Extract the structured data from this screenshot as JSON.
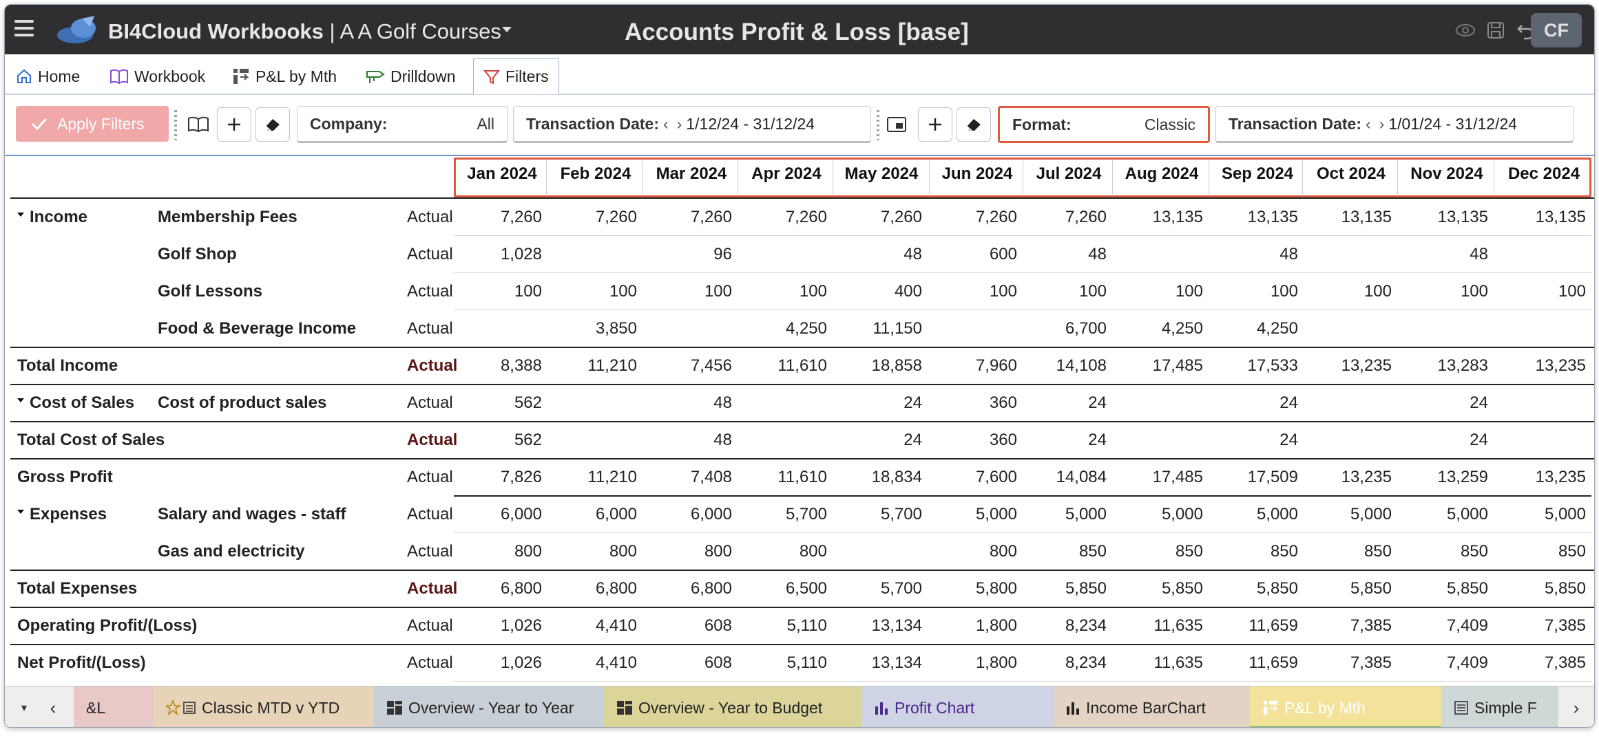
{
  "topbar": {
    "app_name": "BI4Cloud Workbooks",
    "separator": " | ",
    "company": "A A Golf Courses",
    "page_title": "Accounts Profit & Loss [base]",
    "avatar_initials": "CF"
  },
  "nav": {
    "tabs": [
      {
        "label": "Home",
        "icon": "home-icon"
      },
      {
        "label": "Workbook",
        "icon": "book-icon"
      },
      {
        "label": "P&L by Mth",
        "icon": "report-icon"
      },
      {
        "label": "Drilldown",
        "icon": "drill-icon"
      },
      {
        "label": "Filters",
        "icon": "filter-icon",
        "active": true
      }
    ]
  },
  "filters": {
    "apply_label": "Apply Filters",
    "company_label": "Company:",
    "company_value": "All",
    "txn_date_label": "Transaction Date:",
    "txn_date_value": "1/12/24 - 31/12/24",
    "format_label": "Format:",
    "format_value": "Classic",
    "txn_date2_label": "Transaction Date:",
    "txn_date2_value": "1/01/24 - 31/12/24"
  },
  "table": {
    "months": [
      "Jan 2024",
      "Feb 2024",
      "Mar 2024",
      "Apr 2024",
      "May 2024",
      "Jun 2024",
      "Jul 2024",
      "Aug 2024",
      "Sep 2024",
      "Oct 2024",
      "Nov 2024",
      "Dec 2024"
    ],
    "rows": [
      {
        "group": "Income",
        "collapsible": true,
        "account": "Membership Fees",
        "type": "Actual",
        "type_bold": false,
        "values": [
          "7,260",
          "7,260",
          "7,260",
          "7,260",
          "7,260",
          "7,260",
          "7,260",
          "13,135",
          "13,135",
          "13,135",
          "13,135",
          "13,135"
        ]
      },
      {
        "group": "",
        "account": "Golf Shop",
        "type": "Actual",
        "type_bold": false,
        "values": [
          "1,028",
          "",
          "96",
          "",
          "48",
          "600",
          "48",
          "",
          "48",
          "",
          "48",
          ""
        ]
      },
      {
        "group": "",
        "account": "Golf Lessons",
        "type": "Actual",
        "type_bold": false,
        "values": [
          "100",
          "100",
          "100",
          "100",
          "400",
          "100",
          "100",
          "100",
          "100",
          "100",
          "100",
          "100"
        ]
      },
      {
        "group": "",
        "account": "Food & Beverage Income",
        "type": "Actual",
        "type_bold": false,
        "values": [
          "",
          "3,850",
          "",
          "4,250",
          "11,150",
          "",
          "6,700",
          "4,250",
          "4,250",
          "",
          "",
          ""
        ]
      },
      {
        "group": "Total Income",
        "account": "",
        "type": "Actual",
        "type_bold": true,
        "values": [
          "8,388",
          "11,210",
          "7,456",
          "11,610",
          "18,858",
          "7,960",
          "14,108",
          "17,485",
          "17,533",
          "13,235",
          "13,283",
          "13,235"
        ]
      },
      {
        "group": "Cost of Sales",
        "collapsible": true,
        "account": "Cost of product sales",
        "type": "Actual",
        "type_bold": false,
        "values": [
          "562",
          "",
          "48",
          "",
          "24",
          "360",
          "24",
          "",
          "24",
          "",
          "24",
          ""
        ]
      },
      {
        "group": "Total Cost of Sales",
        "account": "",
        "type": "Actual",
        "type_bold": true,
        "values": [
          "562",
          "",
          "48",
          "",
          "24",
          "360",
          "24",
          "",
          "24",
          "",
          "24",
          ""
        ]
      },
      {
        "group": "Gross Profit",
        "account": "",
        "type": "Actual",
        "type_bold": false,
        "values": [
          "7,826",
          "11,210",
          "7,408",
          "11,610",
          "18,834",
          "7,600",
          "14,084",
          "17,485",
          "17,509",
          "13,235",
          "13,259",
          "13,235"
        ]
      },
      {
        "group": "Expenses",
        "collapsible": true,
        "account": "Salary and wages - staff",
        "type": "Actual",
        "type_bold": false,
        "values": [
          "6,000",
          "6,000",
          "6,000",
          "5,700",
          "5,700",
          "5,000",
          "5,000",
          "5,000",
          "5,000",
          "5,000",
          "5,000",
          "5,000"
        ]
      },
      {
        "group": "",
        "account": "Gas and electricity",
        "type": "Actual",
        "type_bold": false,
        "values": [
          "800",
          "800",
          "800",
          "800",
          "",
          "800",
          "850",
          "850",
          "850",
          "850",
          "850",
          "850"
        ]
      },
      {
        "group": "Total Expenses",
        "account": "",
        "type": "Actual",
        "type_bold": true,
        "values": [
          "6,800",
          "6,800",
          "6,800",
          "6,500",
          "5,700",
          "5,800",
          "5,850",
          "5,850",
          "5,850",
          "5,850",
          "5,850",
          "5,850"
        ]
      },
      {
        "group": "Operating Profit/(Loss)",
        "account": "",
        "type": "Actual",
        "type_bold": false,
        "values": [
          "1,026",
          "4,410",
          "608",
          "5,110",
          "13,134",
          "1,800",
          "8,234",
          "11,635",
          "11,659",
          "7,385",
          "7,409",
          "7,385"
        ]
      },
      {
        "group": "Net Profit/(Loss)",
        "account": "",
        "type": "Actual",
        "type_bold": false,
        "values": [
          "1,026",
          "4,410",
          "608",
          "5,110",
          "13,134",
          "1,800",
          "8,234",
          "11,635",
          "11,659",
          "7,385",
          "7,409",
          "7,385"
        ]
      }
    ]
  },
  "sheets": [
    {
      "label": "&L",
      "icon": "",
      "bg": "#e9c8c8"
    },
    {
      "label": "Classic MTD v YTD",
      "icon": "star-list-icon",
      "bg": "#e7d3b7"
    },
    {
      "label": "Overview - Year to Year",
      "icon": "dashboard-icon",
      "bg": "#c9cfd6"
    },
    {
      "label": "Overview - Year to Budget",
      "icon": "dashboard-icon",
      "bg": "#dcd59a"
    },
    {
      "label": "Profit Chart",
      "icon": "bar-chart-icon",
      "bg": "#cfd3e6",
      "color": "#4a2a8a"
    },
    {
      "label": "Income BarChart",
      "icon": "bar-chart-icon",
      "bg": "#e3d3c5"
    },
    {
      "label": "P&L by Mth",
      "icon": "report-icon",
      "bg": "#f3e39a",
      "active": true
    },
    {
      "label": "Simple F",
      "icon": "list-icon",
      "bg": "#cfd8d6"
    }
  ]
}
